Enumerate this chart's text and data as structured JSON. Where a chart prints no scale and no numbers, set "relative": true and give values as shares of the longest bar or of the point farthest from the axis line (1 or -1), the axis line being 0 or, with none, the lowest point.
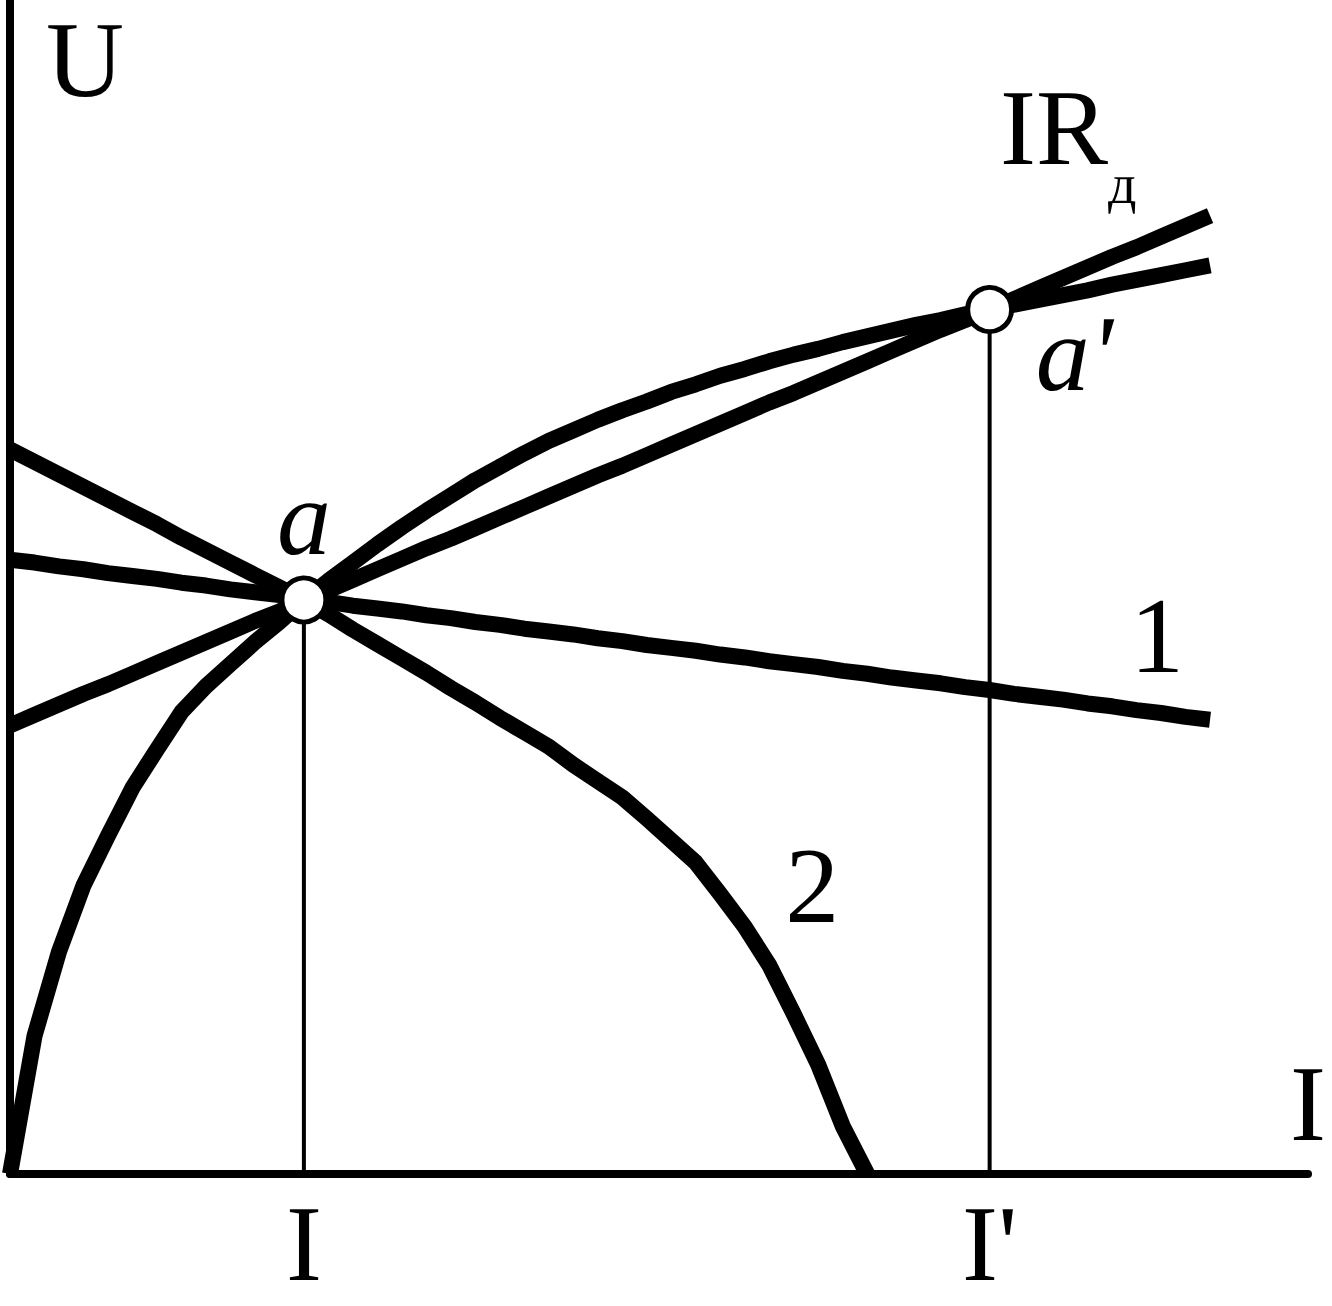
{
  "chart_data": {
    "type": "line",
    "relative": true,
    "xlabel": "I",
    "ylabel": "U",
    "categories": [
      null,
      null,
      null,
      null,
      null,
      null,
      null,
      null,
      null,
      null,
      null,
      null,
      "I",
      null,
      null,
      null,
      null,
      null,
      null,
      null,
      null,
      null,
      null,
      null,
      null,
      null,
      null,
      null,
      null,
      null,
      null,
      null,
      null,
      null,
      null,
      null,
      null,
      null,
      null,
      null,
      "I'",
      null,
      null,
      null,
      null,
      null,
      null,
      null,
      null,
      null,
      null,
      null,
      null,
      null
    ],
    "series": [
      {
        "name": "1",
        "color": "#000000",
        "values": [
          0.641,
          0.638,
          0.634,
          0.631,
          0.627,
          0.624,
          0.621,
          0.617,
          0.614,
          0.61,
          0.607,
          0.604,
          0.6,
          0.597,
          0.593,
          0.59,
          0.587,
          0.583,
          0.58,
          0.576,
          0.573,
          0.569,
          0.566,
          0.563,
          0.559,
          0.556,
          0.552,
          0.549,
          0.546,
          0.542,
          0.539,
          0.535,
          0.532,
          0.529,
          0.525,
          0.522,
          0.518,
          0.515,
          0.512,
          0.508,
          0.505,
          0.501,
          0.498,
          0.495,
          0.491,
          0.488,
          0.484,
          0.481,
          0.477,
          0.474,
          null,
          null,
          null,
          null
        ]
      },
      {
        "name": "IR$_{д}$",
        "color": "#000000",
        "values": [
          0.468,
          0.479,
          0.49,
          0.501,
          0.511,
          0.522,
          0.533,
          0.544,
          0.555,
          0.566,
          0.577,
          0.587,
          0.598,
          0.609,
          0.62,
          0.631,
          0.642,
          0.653,
          0.663,
          0.674,
          0.685,
          0.696,
          0.707,
          0.718,
          0.729,
          0.739,
          0.75,
          0.761,
          0.772,
          0.783,
          0.794,
          0.805,
          0.815,
          0.826,
          0.837,
          0.848,
          0.859,
          0.87,
          0.881,
          0.891,
          0.902,
          0.913,
          0.924,
          0.935,
          0.946,
          0.957,
          0.967,
          0.978,
          0.989,
          1.0,
          null,
          null,
          null,
          null
        ]
      },
      {
        "color": "#000000",
        "values": [
          0,
          0.144,
          0.232,
          0.301,
          0.353,
          0.403,
          0.443,
          0.482,
          0.509,
          0.532,
          0.555,
          0.576,
          0.599,
          0.619,
          0.638,
          0.657,
          0.675,
          0.692,
          0.708,
          0.724,
          0.738,
          0.752,
          0.765,
          0.776,
          0.787,
          0.797,
          0.806,
          0.816,
          0.824,
          0.833,
          0.84,
          0.848,
          0.855,
          0.861,
          0.868,
          0.874,
          0.88,
          0.886,
          0.891,
          0.897,
          0.902,
          0.907,
          0.912,
          0.917,
          0.922,
          0.928,
          0.933,
          0.938,
          0.943,
          0.948,
          null,
          null,
          null,
          null
        ]
      },
      {
        "name": "2",
        "color": "#000000",
        "values": [
          0.756,
          0.743,
          0.73,
          0.717,
          0.704,
          0.691,
          0.678,
          0.664,
          0.651,
          0.638,
          0.625,
          0.612,
          0.599,
          0.584,
          0.568,
          0.553,
          0.538,
          0.523,
          0.507,
          0.492,
          0.476,
          0.461,
          0.446,
          0.427,
          0.41,
          0.393,
          0.371,
          0.348,
          0.325,
          0.292,
          0.258,
          0.218,
          0.167,
          0.114,
          0.05,
          0,
          null,
          null,
          null,
          null,
          null,
          null,
          null,
          null,
          null,
          null,
          null,
          null,
          null,
          null,
          null,
          null,
          null,
          null
        ]
      },
      {
        "type": "lollipop",
        "x": [
          "I",
          "I'"
        ],
        "values": [
          0.599,
          0.902
        ],
        "color": "#000000"
      }
    ],
    "annotations": [
      {
        "text": "a",
        "x": "I",
        "y": 0.599
      },
      {
        "text": "a'",
        "x": "I'",
        "y": 0.902
      }
    ]
  }
}
